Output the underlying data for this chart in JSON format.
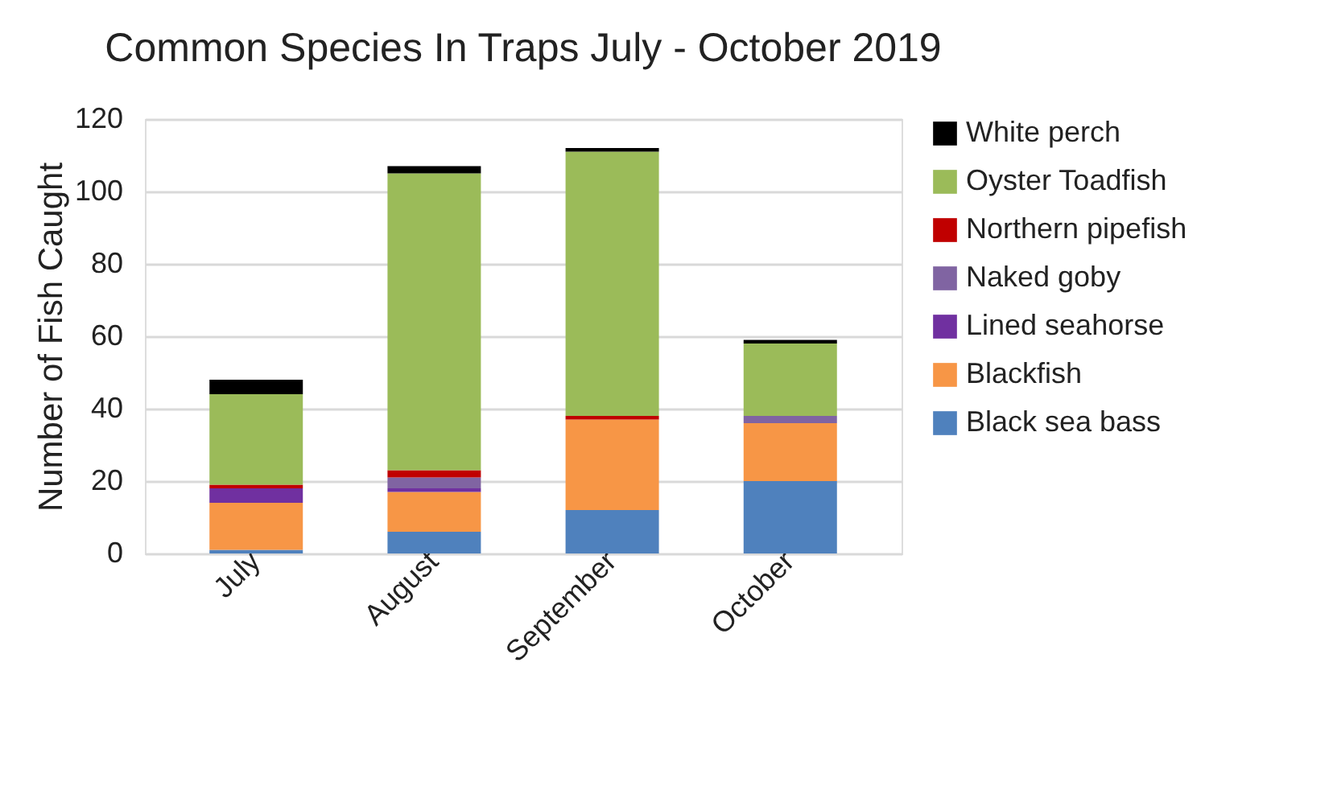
{
  "chart_data": {
    "type": "bar",
    "title": "Common Species In Traps July - October 2019",
    "ylabel": "Number of Fish Caught",
    "categories": [
      "July",
      "August",
      "September",
      "October"
    ],
    "stacked": true,
    "series": [
      {
        "name": "Black sea bass",
        "color": "#4f81bd",
        "values": [
          1,
          6,
          12,
          20
        ]
      },
      {
        "name": "Blackfish",
        "color": "#f79646",
        "values": [
          13,
          11,
          25,
          16
        ]
      },
      {
        "name": "Lined seahorse",
        "color": "#7030a0",
        "values": [
          4,
          1,
          0,
          0
        ]
      },
      {
        "name": "Naked goby",
        "color": "#8064a2",
        "values": [
          0,
          3,
          0,
          2
        ]
      },
      {
        "name": "Northern pipefish",
        "color": "#c00000",
        "values": [
          1,
          2,
          1,
          0
        ]
      },
      {
        "name": "Oyster Toadfish",
        "color": "#9bbb59",
        "values": [
          25,
          82,
          73,
          20
        ]
      },
      {
        "name": "White perch",
        "color": "#000000",
        "values": [
          4,
          2,
          1,
          1
        ]
      }
    ],
    "ylim": [
      0,
      120
    ],
    "yticks": [
      0,
      20,
      40,
      60,
      80,
      100,
      120
    ],
    "grid": "y",
    "legend": "right"
  }
}
